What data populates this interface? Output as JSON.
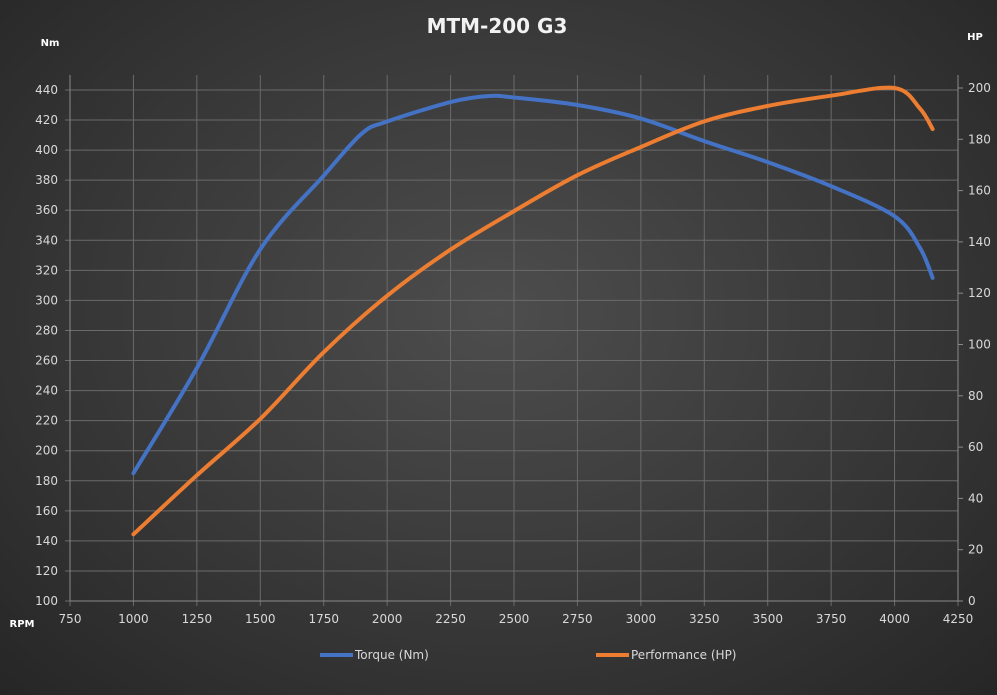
{
  "chart_data": {
    "type": "line",
    "title": "MTM-200 G3",
    "xlabel": "RPM",
    "ylabel": "Nm",
    "y2label": "HP",
    "xlim": [
      750,
      4250
    ],
    "xticks": [
      750,
      1000,
      1250,
      1500,
      1750,
      2000,
      2250,
      2500,
      2750,
      3000,
      3250,
      3500,
      3750,
      4000,
      4250
    ],
    "ylim": [
      100,
      440
    ],
    "yticks": [
      100,
      120,
      140,
      160,
      180,
      200,
      220,
      240,
      260,
      280,
      300,
      320,
      340,
      360,
      380,
      400,
      420,
      440
    ],
    "y2lim": [
      0,
      200
    ],
    "y2ticks": [
      0,
      20,
      40,
      60,
      80,
      100,
      120,
      140,
      160,
      180,
      200
    ],
    "grid": true,
    "legend": "bottom",
    "series": [
      {
        "name": "Torque (Nm)",
        "axis": "left",
        "color": "#4472c4",
        "x": [
          1000,
          1250,
          1500,
          1750,
          1900,
          2000,
          2250,
          2400,
          2500,
          2750,
          3000,
          3250,
          3500,
          3750,
          4000,
          4100,
          4150
        ],
        "y": [
          185,
          255,
          334,
          383,
          411,
          419,
          432,
          436,
          435,
          430,
          421,
          406,
          392,
          376,
          356,
          335,
          315
        ]
      },
      {
        "name": "Performance (HP)",
        "axis": "right",
        "color": "#ed7d31",
        "x": [
          1000,
          1250,
          1500,
          1750,
          2000,
          2250,
          2500,
          2750,
          3000,
          3250,
          3500,
          3750,
          4000,
          4100,
          4150
        ],
        "y": [
          26,
          49,
          71,
          97,
          119,
          137,
          152,
          166,
          177,
          187,
          193,
          197,
          200,
          192,
          184
        ]
      }
    ]
  }
}
